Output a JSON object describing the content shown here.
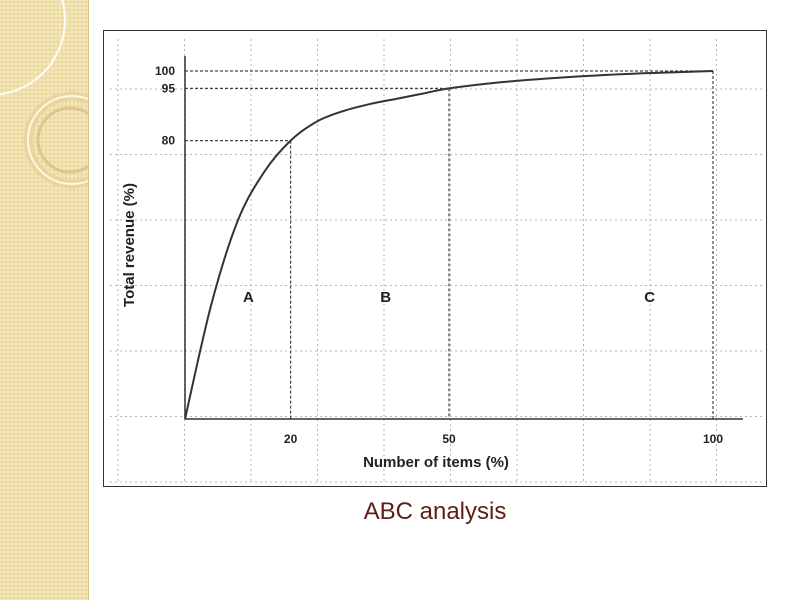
{
  "caption": "ABC analysis",
  "chart_data": {
    "type": "line",
    "title": "",
    "xlabel": "Number of items (%)",
    "ylabel": "Total revenue (%)",
    "xlim": [
      0,
      100
    ],
    "ylim": [
      0,
      100
    ],
    "x_ticks": [
      20,
      50,
      100
    ],
    "y_ticks": [
      80,
      95,
      100
    ],
    "x_tick_labels": [
      "20",
      "50",
      "100"
    ],
    "y_tick_labels": [
      "80",
      "95",
      "100"
    ],
    "grid": true,
    "series": [
      {
        "name": "",
        "x": [
          0,
          5,
          10,
          15,
          20,
          25,
          30,
          35,
          40,
          45,
          50,
          60,
          70,
          80,
          90,
          100
        ],
        "y": [
          0,
          33,
          57,
          71,
          80,
          85.5,
          88.5,
          90.5,
          92,
          93.5,
          95,
          96.8,
          98,
          98.9,
          99.5,
          100
        ]
      }
    ],
    "reference_lines": [
      {
        "x": 20,
        "y": 80
      },
      {
        "x": 50,
        "y": 95
      },
      {
        "x": 100,
        "y": 100
      }
    ],
    "region_labels": [
      {
        "text": "A",
        "x": 12,
        "y": 35
      },
      {
        "text": "B",
        "x": 38,
        "y": 35
      },
      {
        "text": "C",
        "x": 88,
        "y": 35
      }
    ],
    "line_color": "#333333"
  }
}
